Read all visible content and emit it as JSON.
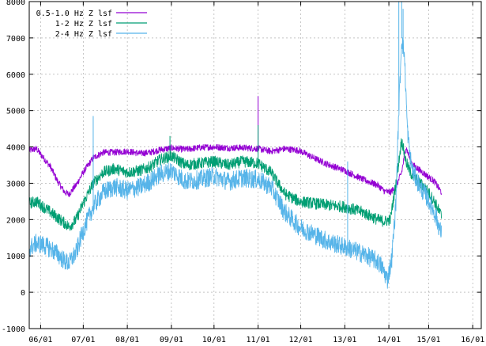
{
  "chart_data": {
    "type": "line",
    "title": "",
    "xlabel": "",
    "ylabel": "",
    "ylim": [
      -1000,
      8000
    ],
    "xlim": [
      "05/24",
      "16/04"
    ],
    "grid": true,
    "legend_position": "top-left",
    "y_ticks": [
      -1000,
      0,
      1000,
      2000,
      3000,
      4000,
      5000,
      6000,
      7000,
      8000
    ],
    "x_ticks": [
      {
        "label": "06/01",
        "day": 8
      },
      {
        "label": "07/01",
        "day": 38
      },
      {
        "label": "08/01",
        "day": 69
      },
      {
        "label": "09/01",
        "day": 100
      },
      {
        "label": "10/01",
        "day": 130
      },
      {
        "label": "11/01",
        "day": 161
      },
      {
        "label": "12/01",
        "day": 191
      },
      {
        "label": "13/01",
        "day": 222
      },
      {
        "label": "14/01",
        "day": 253
      },
      {
        "label": "15/01",
        "day": 281
      },
      {
        "label": "16/01",
        "day": 312
      }
    ],
    "series": [
      {
        "name": "0.5-1.0 Hz Z lsf",
        "color": "#9400d3",
        "noise": 90,
        "points": [
          [
            0,
            3900
          ],
          [
            5,
            3950
          ],
          [
            10,
            3700
          ],
          [
            15,
            3450
          ],
          [
            20,
            3050
          ],
          [
            25,
            2750
          ],
          [
            28,
            2700
          ],
          [
            33,
            2950
          ],
          [
            38,
            3300
          ],
          [
            45,
            3700
          ],
          [
            52,
            3850
          ],
          [
            60,
            3850
          ],
          [
            69,
            3880
          ],
          [
            78,
            3820
          ],
          [
            85,
            3850
          ],
          [
            92,
            3920
          ],
          [
            100,
            3970
          ],
          [
            110,
            3930
          ],
          [
            120,
            3980
          ],
          [
            130,
            4000
          ],
          [
            140,
            3970
          ],
          [
            150,
            3980
          ],
          [
            161,
            3950
          ],
          [
            170,
            3880
          ],
          [
            180,
            3950
          ],
          [
            190,
            3900
          ],
          [
            200,
            3700
          ],
          [
            210,
            3520
          ],
          [
            222,
            3350
          ],
          [
            235,
            3100
          ],
          [
            245,
            2950
          ],
          [
            250,
            2780
          ],
          [
            254,
            2750
          ],
          [
            258,
            2900
          ],
          [
            262,
            3300
          ],
          [
            265,
            4000
          ],
          [
            268,
            3650
          ],
          [
            270,
            3500
          ],
          [
            275,
            3350
          ],
          [
            280,
            3200
          ],
          [
            285,
            3050
          ],
          [
            290,
            2750
          ]
        ]
      },
      {
        "name": "1-2 Hz Z lsf",
        "color": "#009e73",
        "noise": 160,
        "points": [
          [
            0,
            2450
          ],
          [
            5,
            2500
          ],
          [
            10,
            2350
          ],
          [
            15,
            2200
          ],
          [
            20,
            2050
          ],
          [
            25,
            1900
          ],
          [
            28,
            1800
          ],
          [
            33,
            2000
          ],
          [
            38,
            2450
          ],
          [
            45,
            3000
          ],
          [
            52,
            3300
          ],
          [
            60,
            3400
          ],
          [
            69,
            3300
          ],
          [
            78,
            3350
          ],
          [
            85,
            3450
          ],
          [
            92,
            3650
          ],
          [
            100,
            3750
          ],
          [
            110,
            3500
          ],
          [
            120,
            3550
          ],
          [
            130,
            3600
          ],
          [
            140,
            3500
          ],
          [
            150,
            3600
          ],
          [
            161,
            3550
          ],
          [
            170,
            3300
          ],
          [
            180,
            2700
          ],
          [
            190,
            2500
          ],
          [
            200,
            2450
          ],
          [
            210,
            2400
          ],
          [
            222,
            2350
          ],
          [
            235,
            2200
          ],
          [
            245,
            2000
          ],
          [
            250,
            1950
          ],
          [
            254,
            2000
          ],
          [
            258,
            3000
          ],
          [
            262,
            4200
          ],
          [
            265,
            3600
          ],
          [
            268,
            3300
          ],
          [
            270,
            3200
          ],
          [
            275,
            3000
          ],
          [
            280,
            2800
          ],
          [
            285,
            2500
          ],
          [
            290,
            2100
          ]
        ]
      },
      {
        "name": "2-4 Hz Z lsf",
        "color": "#56b4e9",
        "noise": 260,
        "points": [
          [
            0,
            1200
          ],
          [
            5,
            1350
          ],
          [
            10,
            1300
          ],
          [
            15,
            1200
          ],
          [
            20,
            1050
          ],
          [
            25,
            850
          ],
          [
            28,
            800
          ],
          [
            33,
            1100
          ],
          [
            38,
            1700
          ],
          [
            45,
            2350
          ],
          [
            52,
            2750
          ],
          [
            60,
            2900
          ],
          [
            69,
            2800
          ],
          [
            78,
            2900
          ],
          [
            85,
            3050
          ],
          [
            92,
            3250
          ],
          [
            100,
            3350
          ],
          [
            110,
            3050
          ],
          [
            120,
            3100
          ],
          [
            130,
            3200
          ],
          [
            140,
            3050
          ],
          [
            150,
            3150
          ],
          [
            161,
            3100
          ],
          [
            170,
            2900
          ],
          [
            180,
            2200
          ],
          [
            190,
            1800
          ],
          [
            200,
            1600
          ],
          [
            210,
            1400
          ],
          [
            222,
            1250
          ],
          [
            235,
            1050
          ],
          [
            245,
            850
          ],
          [
            248,
            700
          ],
          [
            252,
            350
          ],
          [
            255,
            900
          ],
          [
            258,
            2500
          ],
          [
            260,
            5000
          ],
          [
            262,
            7000
          ],
          [
            264,
            6500
          ],
          [
            266,
            4500
          ],
          [
            268,
            3700
          ],
          [
            270,
            3300
          ],
          [
            275,
            2900
          ],
          [
            280,
            2600
          ],
          [
            285,
            2200
          ],
          [
            290,
            1600
          ]
        ]
      }
    ],
    "spikes": [
      {
        "series": 0,
        "day": 161,
        "y": 5400
      },
      {
        "series": 1,
        "day": 99,
        "y": 4300
      },
      {
        "series": 1,
        "day": 161,
        "y": 4600
      },
      {
        "series": 2,
        "day": 45,
        "y": 4850
      },
      {
        "series": 2,
        "day": 224,
        "y": 3600
      },
      {
        "series": 2,
        "day": 260,
        "y": 8000
      },
      {
        "series": 2,
        "day": 262,
        "y": 8000
      },
      {
        "series": 2,
        "day": 263,
        "y": 7800
      }
    ]
  }
}
